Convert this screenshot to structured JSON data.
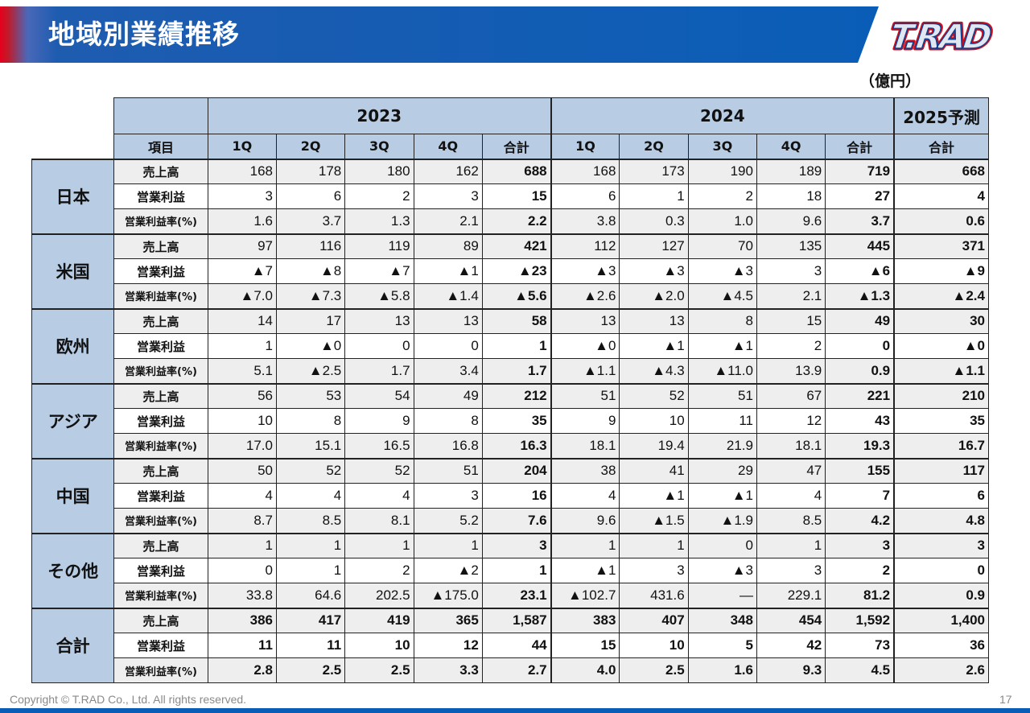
{
  "header": {
    "title": "地域別業績推移"
  },
  "unit": "（億円）",
  "table": {
    "years": [
      "2023",
      "2024",
      "2025予測"
    ],
    "item_header": "項目",
    "columns": [
      "1Q",
      "2Q",
      "3Q",
      "4Q",
      "合計",
      "1Q",
      "2Q",
      "3Q",
      "4Q",
      "合計",
      "合計"
    ],
    "row_labels": [
      "売上高",
      "営業利益",
      "営業利益率(%)"
    ],
    "regions": [
      {
        "name": "日本",
        "rows": [
          [
            "168",
            "178",
            "180",
            "162",
            "688",
            "168",
            "173",
            "190",
            "189",
            "719",
            "668"
          ],
          [
            "3",
            "6",
            "2",
            "3",
            "15",
            "6",
            "1",
            "2",
            "18",
            "27",
            "4"
          ],
          [
            "1.6",
            "3.7",
            "1.3",
            "2.1",
            "2.2",
            "3.8",
            "0.3",
            "1.0",
            "9.6",
            "3.7",
            "0.6"
          ]
        ]
      },
      {
        "name": "米国",
        "rows": [
          [
            "97",
            "116",
            "119",
            "89",
            "421",
            "112",
            "127",
            "70",
            "135",
            "445",
            "371"
          ],
          [
            "▲7",
            "▲8",
            "▲7",
            "▲1",
            "▲23",
            "▲3",
            "▲3",
            "▲3",
            "3",
            "▲6",
            "▲9"
          ],
          [
            "▲7.0",
            "▲7.3",
            "▲5.8",
            "▲1.4",
            "▲5.6",
            "▲2.6",
            "▲2.0",
            "▲4.5",
            "2.1",
            "▲1.3",
            "▲2.4"
          ]
        ]
      },
      {
        "name": "欧州",
        "rows": [
          [
            "14",
            "17",
            "13",
            "13",
            "58",
            "13",
            "13",
            "8",
            "15",
            "49",
            "30"
          ],
          [
            "1",
            "▲0",
            "0",
            "0",
            "1",
            "▲0",
            "▲1",
            "▲1",
            "2",
            "0",
            "▲0"
          ],
          [
            "5.1",
            "▲2.5",
            "1.7",
            "3.4",
            "1.7",
            "▲1.1",
            "▲4.3",
            "▲11.0",
            "13.9",
            "0.9",
            "▲1.1"
          ]
        ]
      },
      {
        "name": "アジア",
        "rows": [
          [
            "56",
            "53",
            "54",
            "49",
            "212",
            "51",
            "52",
            "51",
            "67",
            "221",
            "210"
          ],
          [
            "10",
            "8",
            "9",
            "8",
            "35",
            "9",
            "10",
            "11",
            "12",
            "43",
            "35"
          ],
          [
            "17.0",
            "15.1",
            "16.5",
            "16.8",
            "16.3",
            "18.1",
            "19.4",
            "21.9",
            "18.1",
            "19.3",
            "16.7"
          ]
        ]
      },
      {
        "name": "中国",
        "rows": [
          [
            "50",
            "52",
            "52",
            "51",
            "204",
            "38",
            "41",
            "29",
            "47",
            "155",
            "117"
          ],
          [
            "4",
            "4",
            "4",
            "3",
            "16",
            "4",
            "▲1",
            "▲1",
            "4",
            "7",
            "6"
          ],
          [
            "8.7",
            "8.5",
            "8.1",
            "5.2",
            "7.6",
            "9.6",
            "▲1.5",
            "▲1.9",
            "8.5",
            "4.2",
            "4.8"
          ]
        ]
      },
      {
        "name": "その他",
        "rows": [
          [
            "1",
            "1",
            "1",
            "1",
            "3",
            "1",
            "1",
            "0",
            "1",
            "3",
            "3"
          ],
          [
            "0",
            "1",
            "2",
            "▲2",
            "1",
            "▲1",
            "3",
            "▲3",
            "3",
            "2",
            "0"
          ],
          [
            "33.8",
            "64.6",
            "202.5",
            "▲175.0",
            "23.1",
            "▲102.7",
            "431.6",
            "―",
            "229.1",
            "81.2",
            "0.9"
          ]
        ]
      },
      {
        "name": "合計",
        "total": true,
        "rows": [
          [
            "386",
            "417",
            "419",
            "365",
            "1,587",
            "383",
            "407",
            "348",
            "454",
            "1,592",
            "1,400"
          ],
          [
            "11",
            "11",
            "10",
            "12",
            "44",
            "15",
            "10",
            "5",
            "42",
            "73",
            "36"
          ],
          [
            "2.8",
            "2.5",
            "2.5",
            "3.3",
            "2.7",
            "4.0",
            "2.5",
            "1.6",
            "9.3",
            "4.5",
            "2.6"
          ]
        ]
      }
    ]
  },
  "logo": {
    "text": "T.RAD"
  },
  "footer": {
    "copyright": "Copyright © T.RAD Co., Ltd. All rights reserved.",
    "page": "17"
  },
  "colors": {
    "header_blue": "#0a5db7",
    "accent_red": "#e6001e",
    "table_header": "#b8cce4",
    "row_shade": "#eeeeee"
  }
}
